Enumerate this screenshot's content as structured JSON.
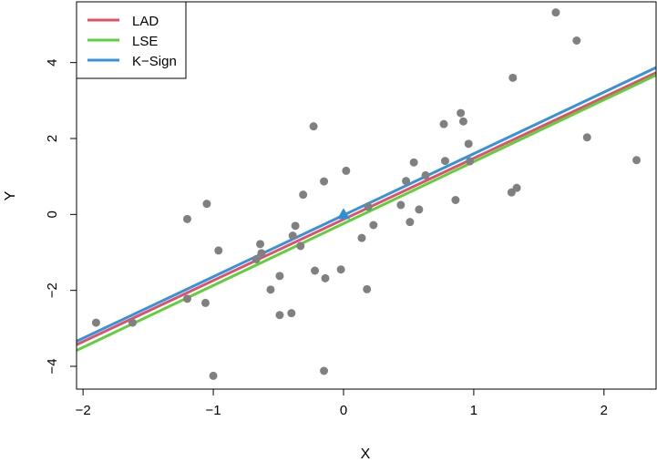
{
  "chart_data": {
    "type": "scatter",
    "xlabel": "X",
    "ylabel": "Y",
    "xlim": [
      -2.05,
      2.4
    ],
    "ylim": [
      -4.6,
      5.6
    ],
    "xticks": [
      -2,
      -1,
      0,
      1,
      2
    ],
    "yticks": [
      -4,
      -2,
      0,
      2,
      4
    ],
    "xtick_labels": [
      "−2",
      "−1",
      "0",
      "1",
      "2"
    ],
    "ytick_labels": [
      "−4",
      "−2",
      "0",
      "2",
      "4"
    ],
    "legend": {
      "placement": "top-left"
    },
    "points": [
      [
        -1.9,
        -2.85
      ],
      [
        -1.62,
        -2.85
      ],
      [
        -1.2,
        -0.12
      ],
      [
        -1.2,
        -2.22
      ],
      [
        -1.05,
        0.28
      ],
      [
        -1.06,
        -2.33
      ],
      [
        -1.0,
        -4.25
      ],
      [
        -0.96,
        -0.95
      ],
      [
        -0.67,
        -1.18
      ],
      [
        -0.64,
        -0.78
      ],
      [
        -0.63,
        -1.02
      ],
      [
        -0.56,
        -1.98
      ],
      [
        -0.49,
        -1.62
      ],
      [
        -0.49,
        -2.65
      ],
      [
        -0.4,
        -2.6
      ],
      [
        -0.39,
        -0.56
      ],
      [
        -0.37,
        -0.3
      ],
      [
        -0.33,
        -0.83
      ],
      [
        -0.31,
        0.52
      ],
      [
        -0.23,
        2.32
      ],
      [
        -0.22,
        -1.48
      ],
      [
        -0.15,
        0.87
      ],
      [
        -0.14,
        -1.68
      ],
      [
        -0.15,
        -4.12
      ],
      [
        -0.02,
        -1.45
      ],
      [
        0.02,
        1.15
      ],
      [
        0.14,
        -0.62
      ],
      [
        0.19,
        0.2
      ],
      [
        0.18,
        -1.97
      ],
      [
        0.23,
        -0.28
      ],
      [
        0.44,
        0.25
      ],
      [
        0.48,
        0.88
      ],
      [
        0.51,
        -0.2
      ],
      [
        0.54,
        1.37
      ],
      [
        0.58,
        0.13
      ],
      [
        0.63,
        1.03
      ],
      [
        0.77,
        2.38
      ],
      [
        0.78,
        1.41
      ],
      [
        0.86,
        0.38
      ],
      [
        0.9,
        2.67
      ],
      [
        0.92,
        2.45
      ],
      [
        0.96,
        1.86
      ],
      [
        0.97,
        1.4
      ],
      [
        1.29,
        0.58
      ],
      [
        1.3,
        3.6
      ],
      [
        1.33,
        0.7
      ],
      [
        1.63,
        5.32
      ],
      [
        1.79,
        4.58
      ],
      [
        1.87,
        2.03
      ],
      [
        2.25,
        1.43
      ]
    ],
    "marker": {
      "x": 0,
      "y": 0,
      "shape": "triangle",
      "color": "#2c8fd8"
    },
    "series": [
      {
        "name": "LAD",
        "color": "#e0506b",
        "intercept": -0.13,
        "slope": 1.61
      },
      {
        "name": "LSE",
        "color": "#5fcf3c",
        "intercept": -0.24,
        "slope": 1.63
      },
      {
        "name": "K−Sign",
        "color": "#3393dc",
        "intercept": -0.02,
        "slope": 1.62
      }
    ],
    "point_color": "#808080"
  }
}
